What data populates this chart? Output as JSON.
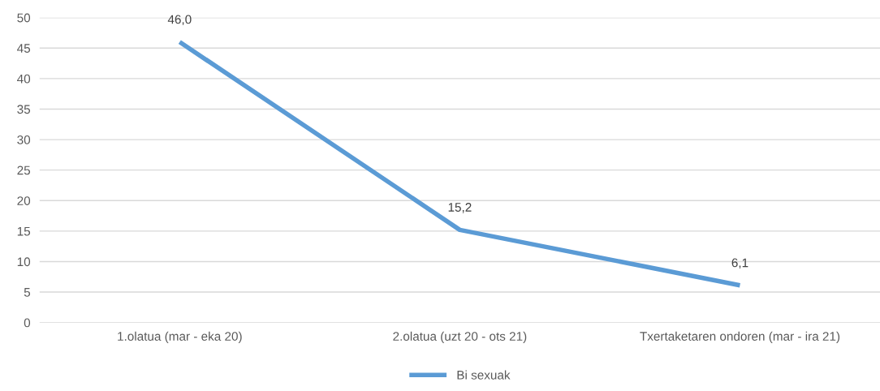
{
  "chart_data": {
    "type": "line",
    "categories": [
      "1.olatua (mar - eka 20)",
      "2.olatua (uzt 20 - ots 21)",
      "Txertaketaren ondoren (mar - ira 21)"
    ],
    "series": [
      {
        "name": "Bi sexuak",
        "color": "#5b9bd5",
        "values": [
          46.0,
          15.2,
          6.1
        ],
        "value_labels": [
          "46,0",
          "15,2",
          "6,1"
        ]
      }
    ],
    "ylim": [
      0,
      50
    ],
    "yticks": [
      0,
      5,
      10,
      15,
      20,
      25,
      30,
      35,
      40,
      45,
      50
    ],
    "grid": "y",
    "legend": "bottom",
    "marker": "none",
    "line_style": "solid"
  }
}
